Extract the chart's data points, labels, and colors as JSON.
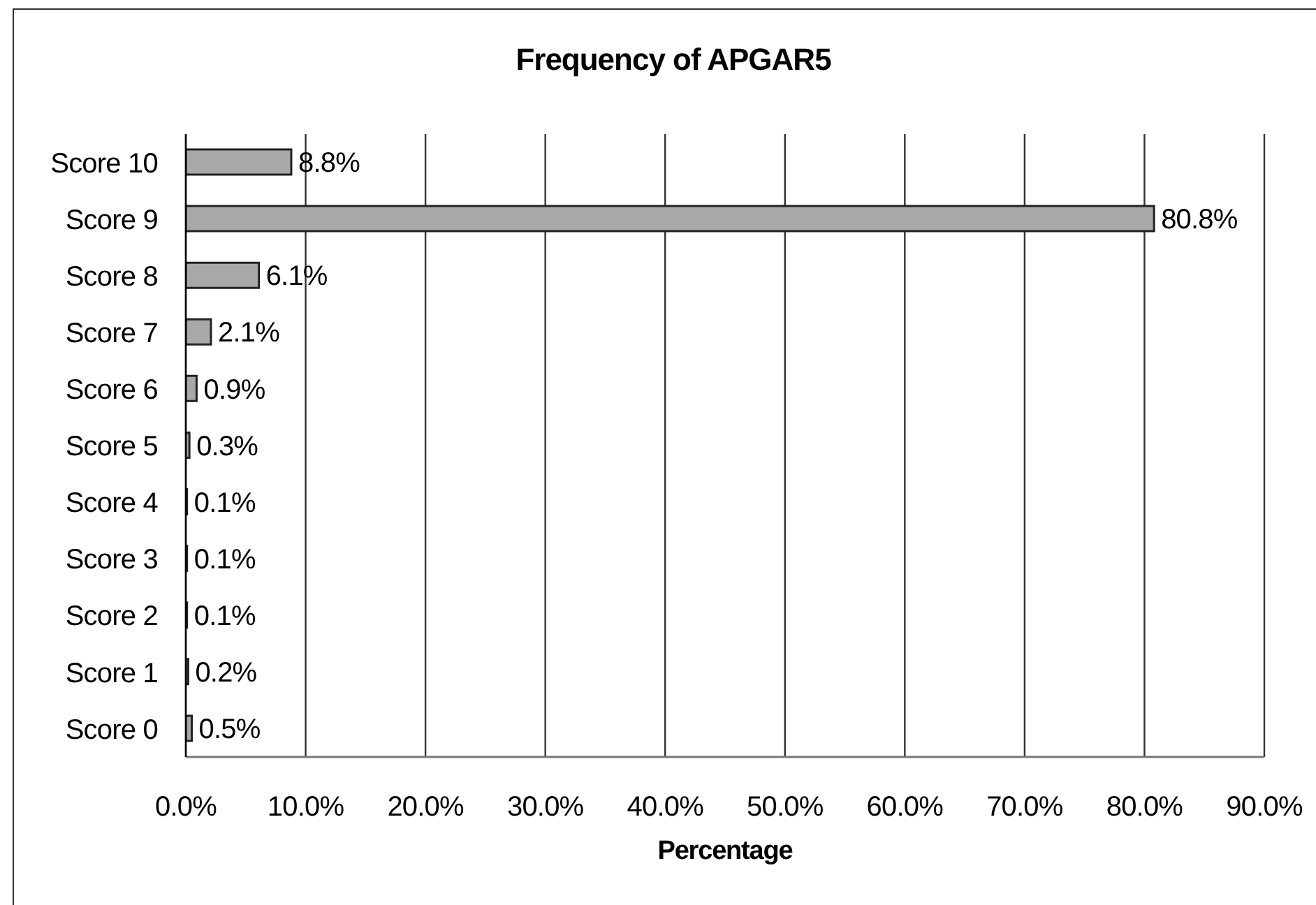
{
  "chart_data": {
    "type": "bar",
    "orientation": "horizontal",
    "title": "Frequency of APGAR5",
    "xlabel": "Percentage",
    "categories": [
      "Score 10",
      "Score 9",
      "Score 8",
      "Score 7",
      "Score 6",
      "Score 5",
      "Score 4",
      "Score 3",
      "Score 2",
      "Score 1",
      "Score 0"
    ],
    "values": [
      8.8,
      80.8,
      6.1,
      2.1,
      0.9,
      0.3,
      0.1,
      0.1,
      0.1,
      0.2,
      0.5
    ],
    "value_labels": [
      "8.8%",
      "80.8%",
      "6.1%",
      "2.1%",
      "0.9%",
      "0.3%",
      "0.1%",
      "0.1%",
      "0.1%",
      "0.2%",
      "0.5%"
    ],
    "color": "#a8a8a8",
    "xlim": [
      0,
      90
    ],
    "xticks": [
      {
        "value": 0,
        "label": "0.0%"
      },
      {
        "value": 10,
        "label": "10.0%"
      },
      {
        "value": 20,
        "label": "20.0%"
      },
      {
        "value": 30,
        "label": "30.0%"
      },
      {
        "value": 40,
        "label": "40.0%"
      },
      {
        "value": 50,
        "label": "50.0%"
      },
      {
        "value": 60,
        "label": "60.0%"
      },
      {
        "value": 70,
        "label": "70.0%"
      },
      {
        "value": 80,
        "label": "80.0%"
      },
      {
        "value": 90,
        "label": "90.0%"
      }
    ],
    "grid": "x"
  }
}
